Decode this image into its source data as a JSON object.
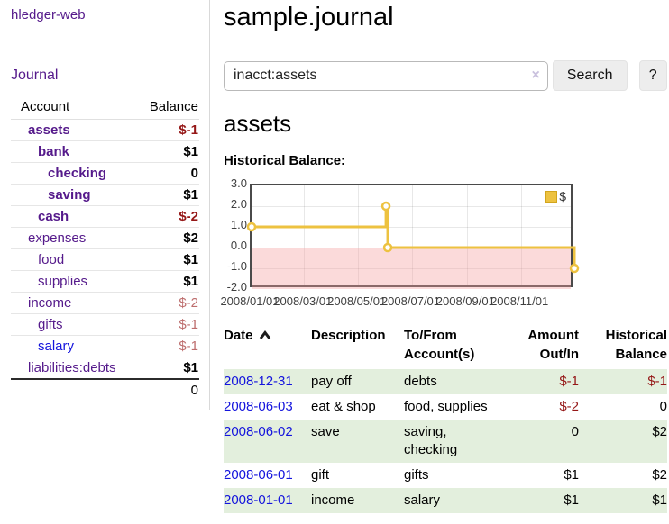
{
  "app": {
    "title": "hledger-web"
  },
  "sidebar": {
    "nav": {
      "journal_label": "Journal"
    },
    "accounts": {
      "col_account": "Account",
      "col_balance": "Balance",
      "rows": [
        {
          "name": "assets",
          "depth": 0,
          "bold": true,
          "balance": "$-1",
          "balance_style": "neg"
        },
        {
          "name": "bank",
          "depth": 1,
          "bold": true,
          "balance": "$1",
          "balance_style": "pos"
        },
        {
          "name": "checking",
          "depth": 2,
          "bold": true,
          "balance": "0",
          "balance_style": "pos"
        },
        {
          "name": "saving",
          "depth": 2,
          "bold": true,
          "balance": "$1",
          "balance_style": "pos"
        },
        {
          "name": "cash",
          "depth": 1,
          "bold": true,
          "balance": "$-2",
          "balance_style": "neg"
        },
        {
          "name": "expenses",
          "depth": 0,
          "bold": false,
          "balance": "$2",
          "balance_style": "pos"
        },
        {
          "name": "food",
          "depth": 1,
          "bold": false,
          "balance": "$1",
          "balance_style": "pos"
        },
        {
          "name": "supplies",
          "depth": 1,
          "bold": false,
          "balance": "$1",
          "balance_style": "pos"
        },
        {
          "name": "income",
          "depth": 0,
          "bold": false,
          "balance": "$-2",
          "balance_style": "neg-faded"
        },
        {
          "name": "gifts",
          "depth": 1,
          "bold": false,
          "balance": "$-1",
          "balance_style": "neg-faded"
        },
        {
          "name": "salary",
          "depth": 1,
          "bold": false,
          "link_style": "unvisited",
          "balance": "$-1",
          "balance_style": "neg-faded"
        },
        {
          "name": "liabilities:debts",
          "depth": 0,
          "bold": false,
          "balance": "$1",
          "balance_style": "pos"
        }
      ],
      "total": "0"
    }
  },
  "main": {
    "title": "sample.journal",
    "search": {
      "value": "inacct:assets",
      "clear_icon": "×",
      "button_label": "Search",
      "help_label": "?"
    },
    "account_heading": "assets",
    "chart_label": "Historical Balance:"
  },
  "chart_data": {
    "type": "line",
    "step": true,
    "title": "Historical Balance",
    "series": [
      {
        "name": "$",
        "color": "#edc240",
        "points": [
          [
            "2008-01-01",
            1.0
          ],
          [
            "2008-06-01",
            2.0
          ],
          [
            "2008-06-03",
            0.0
          ],
          [
            "2008-12-31",
            -1.0
          ]
        ]
      }
    ],
    "xlim": [
      "2008-01-01",
      "2008-12-31"
    ],
    "ylim": [
      -2.0,
      3.0
    ],
    "yticks": [
      [
        "3.0",
        3.0
      ],
      [
        "2.0",
        2.0
      ],
      [
        "1.0",
        1.0
      ],
      [
        "0.0",
        0.0
      ],
      [
        "-1.0",
        -1.0
      ],
      [
        "-2.0",
        -2.0
      ]
    ],
    "xticks": [
      [
        "2008/01/01",
        "2008-01-01"
      ],
      [
        "2008/03/01",
        "2008-03-01"
      ],
      [
        "2008/05/01",
        "2008-05-01"
      ],
      [
        "2008/07/01",
        "2008-07-01"
      ],
      [
        "2008/09/01",
        "2008-09-01"
      ],
      [
        "2008/11/01",
        "2008-11-01"
      ]
    ],
    "legend": {
      "label": "$",
      "position": "top-right"
    },
    "grid": true,
    "negative_region_fill": "rgba(244,158,158,0.38)",
    "zero_line_color": "#8b0000"
  },
  "register": {
    "headers": {
      "date": "Date",
      "description": "Description",
      "accounts": "To/From Account(s)",
      "amount": "Amount Out/In",
      "balance": "Historical Balance"
    },
    "rows": [
      {
        "date": "2008-12-31",
        "description": "pay off",
        "accounts": "debts",
        "amount": "$-1",
        "amount_style": "neg",
        "balance": "$-1",
        "balance_style": "neg"
      },
      {
        "date": "2008-06-03",
        "description": "eat & shop",
        "accounts": "food, supplies",
        "amount": "$-2",
        "amount_style": "neg",
        "balance": "0",
        "balance_style": "pos"
      },
      {
        "date": "2008-06-02",
        "description": "save",
        "accounts": "saving, checking",
        "amount": "0",
        "amount_style": "pos",
        "balance": "$2",
        "balance_style": "pos"
      },
      {
        "date": "2008-06-01",
        "description": "gift",
        "accounts": "gifts",
        "amount": "$1",
        "amount_style": "pos",
        "balance": "$2",
        "balance_style": "pos"
      },
      {
        "date": "2008-01-01",
        "description": "income",
        "accounts": "salary",
        "amount": "$1",
        "amount_style": "pos",
        "balance": "$1",
        "balance_style": "pos"
      }
    ]
  },
  "colors": {
    "link_visited_purple": "#551a8b",
    "link_blue": "#1414dd",
    "negative_red": "#951717",
    "negative_faded_red": "#bd6d6d",
    "row_stripe_green": "#e3efdd",
    "series_gold": "#edc240",
    "button_gray": "#ededed"
  }
}
